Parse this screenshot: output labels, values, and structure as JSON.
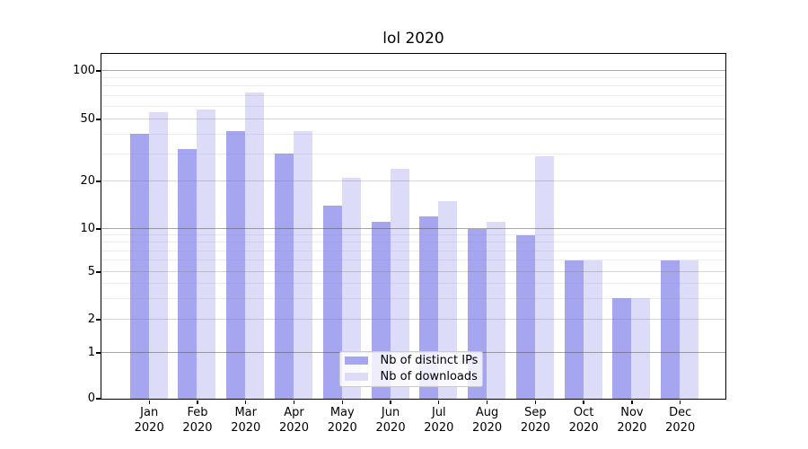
{
  "title": "lol 2020",
  "chart_data": {
    "type": "bar",
    "title": "lol 2020",
    "categories": [
      "Jan",
      "Feb",
      "Mar",
      "Apr",
      "May",
      "Jun",
      "Jul",
      "Aug",
      "Sep",
      "Oct",
      "Nov",
      "Dec"
    ],
    "category_year": "2020",
    "series": [
      {
        "name": "Nb of distinct IPs",
        "color": "#a5a5f0",
        "values": [
          40,
          32,
          42,
          30,
          14,
          11,
          12,
          10,
          9,
          6,
          3,
          6
        ]
      },
      {
        "name": "Nb of downloads",
        "color": "#dcdcf8",
        "values": [
          55,
          57,
          73,
          42,
          21,
          24,
          15,
          11,
          29,
          6,
          3,
          6
        ]
      }
    ],
    "xlabel": "",
    "ylabel": "",
    "yscale": "log-like with zero baseline",
    "yticks": [
      0,
      1,
      2,
      5,
      10,
      20,
      50,
      100
    ],
    "major_gridlines": [
      1,
      10,
      100
    ],
    "mid_gridlines": [
      2,
      5,
      20,
      50
    ],
    "minor_gridlines": [
      3,
      4,
      6,
      7,
      8,
      9,
      30,
      40,
      60,
      70,
      80,
      90
    ],
    "ylim": [
      0,
      128
    ],
    "grid": true,
    "legend_position": "lower center"
  }
}
